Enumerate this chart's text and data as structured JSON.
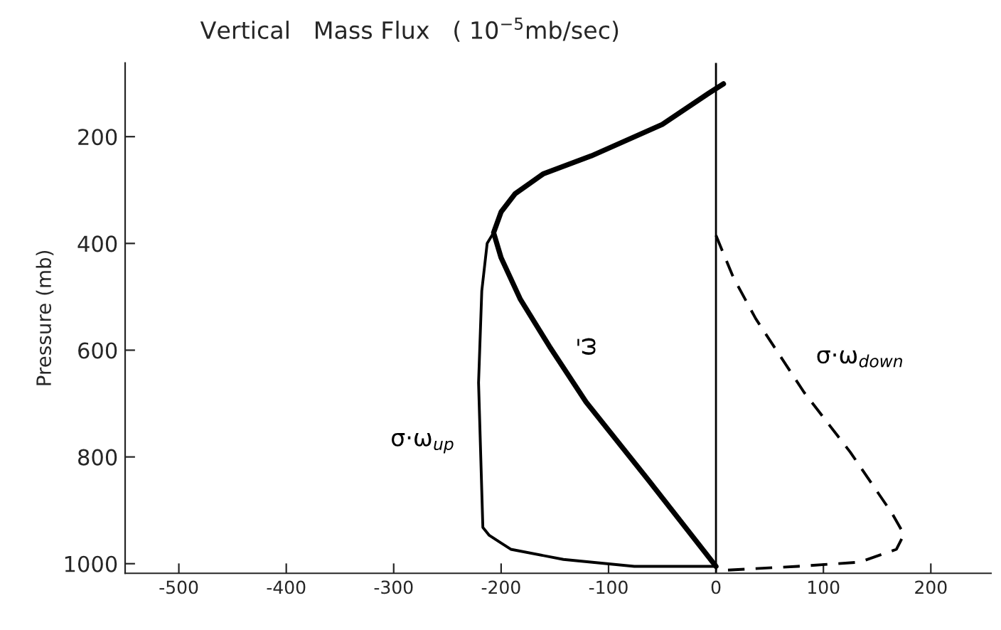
{
  "chart_data": {
    "type": "line",
    "title": "Vertical   Mass Flux   ( 10$^{−5}$mb/sec)",
    "ylabel": "Pressure (mb)",
    "xlim": [
      -550,
      256
    ],
    "xticks": [
      -500,
      -400,
      -300,
      -200,
      -100,
      0,
      100,
      200
    ],
    "ylim": [
      1018,
      62
    ],
    "yticks": [
      200,
      400,
      600,
      800,
      1000
    ],
    "grid": false,
    "legend": false,
    "marker": "none",
    "ref_lines": [
      {
        "axis": "x",
        "value": 0,
        "color": "#000000"
      }
    ],
    "series": [
      {
        "name": "ω̄",
        "color": "#000000",
        "line_style": "solid",
        "x": [
          7,
          -7,
          -50,
          -116,
          -161,
          -187,
          -200,
          -207,
          -200,
          -182,
          -155,
          -121,
          -63,
          0
        ],
        "values": [
          101,
          119,
          177,
          236,
          270,
          307,
          341,
          380,
          427,
          505,
          593,
          697,
          843,
          1005
        ]
      },
      {
        "name": "σ·ω$_{up}$",
        "color": "#000000",
        "line_style": "solid",
        "x": [
          -207,
          -213,
          -218,
          -221,
          -217,
          -211,
          -191,
          -142,
          -76,
          0
        ],
        "values": [
          380,
          400,
          489,
          661,
          932,
          947,
          973,
          992,
          1005,
          1005
        ]
      },
      {
        "name": "σ·ω$_{down}$",
        "color": "#000000",
        "line_style": "dashed",
        "x": [
          0,
          16,
          37,
          82,
          125,
          164,
          175,
          168,
          134,
          76,
          11,
          0
        ],
        "values": [
          385,
          463,
          541,
          679,
          791,
          906,
          945,
          973,
          997,
          1005,
          1012,
          1010
        ]
      }
    ]
  }
}
